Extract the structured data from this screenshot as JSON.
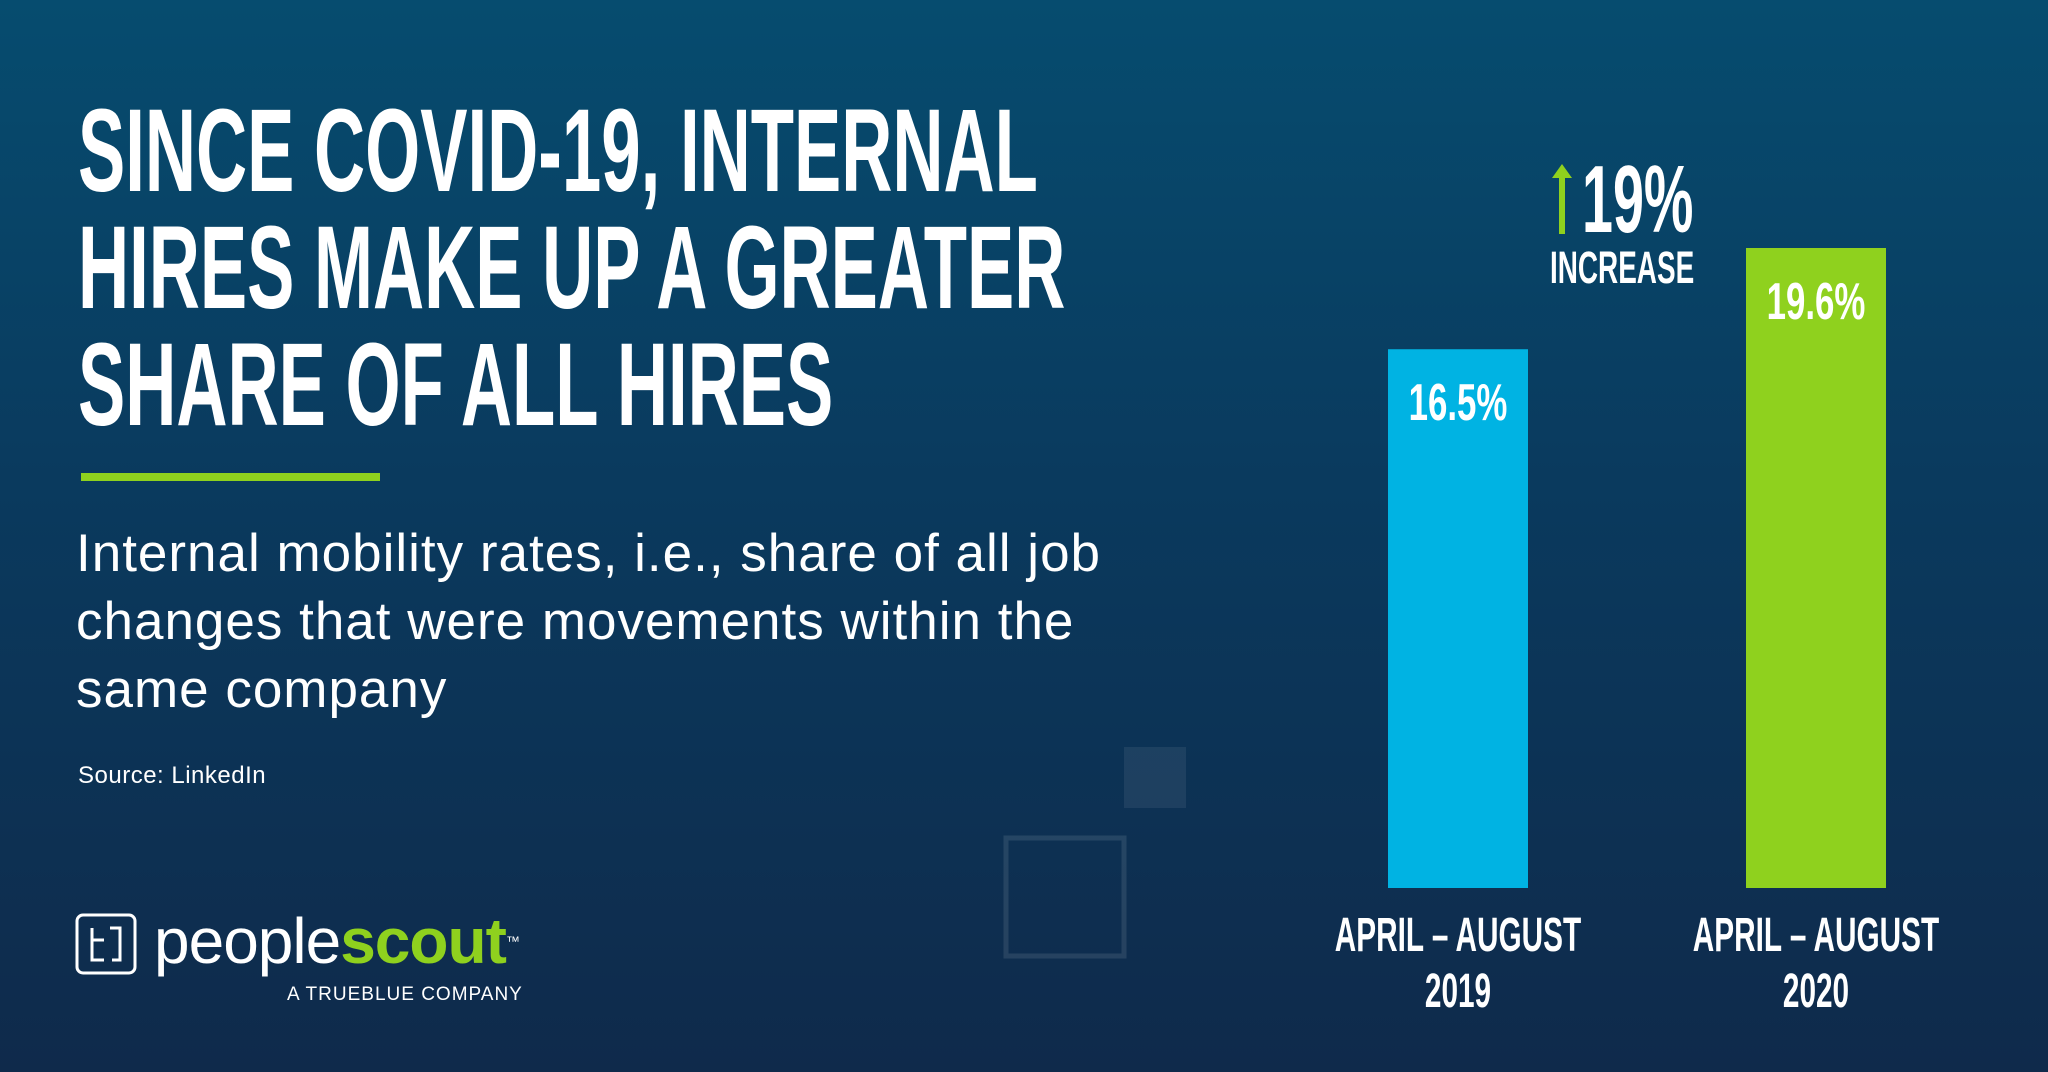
{
  "chart_data": {
    "type": "bar",
    "title": [
      "SINCE COVID-19, INTERNAL",
      "HIRES MAKE UP A GREATER",
      "SHARE OF ALL HIRES"
    ],
    "subtitle": "Internal mobility rates, i.e., share of all job changes that were movements within the same company",
    "source": "Source: LinkedIn",
    "annotations": [
      "19%",
      "INCREASE"
    ],
    "categories": [
      "APRIL – AUGUST 2019",
      "APRIL – AUGUST 2020"
    ],
    "values": [
      16.5,
      19.6
    ],
    "value_labels": [
      "16.5%",
      "19.6%"
    ],
    "colors": [
      "#00b3e3",
      "#8fd11e"
    ]
  },
  "logo": {
    "word_1": "people",
    "word_2": "scout",
    "trademark": "™",
    "tagline": "A TRUEBLUE COMPANY"
  }
}
